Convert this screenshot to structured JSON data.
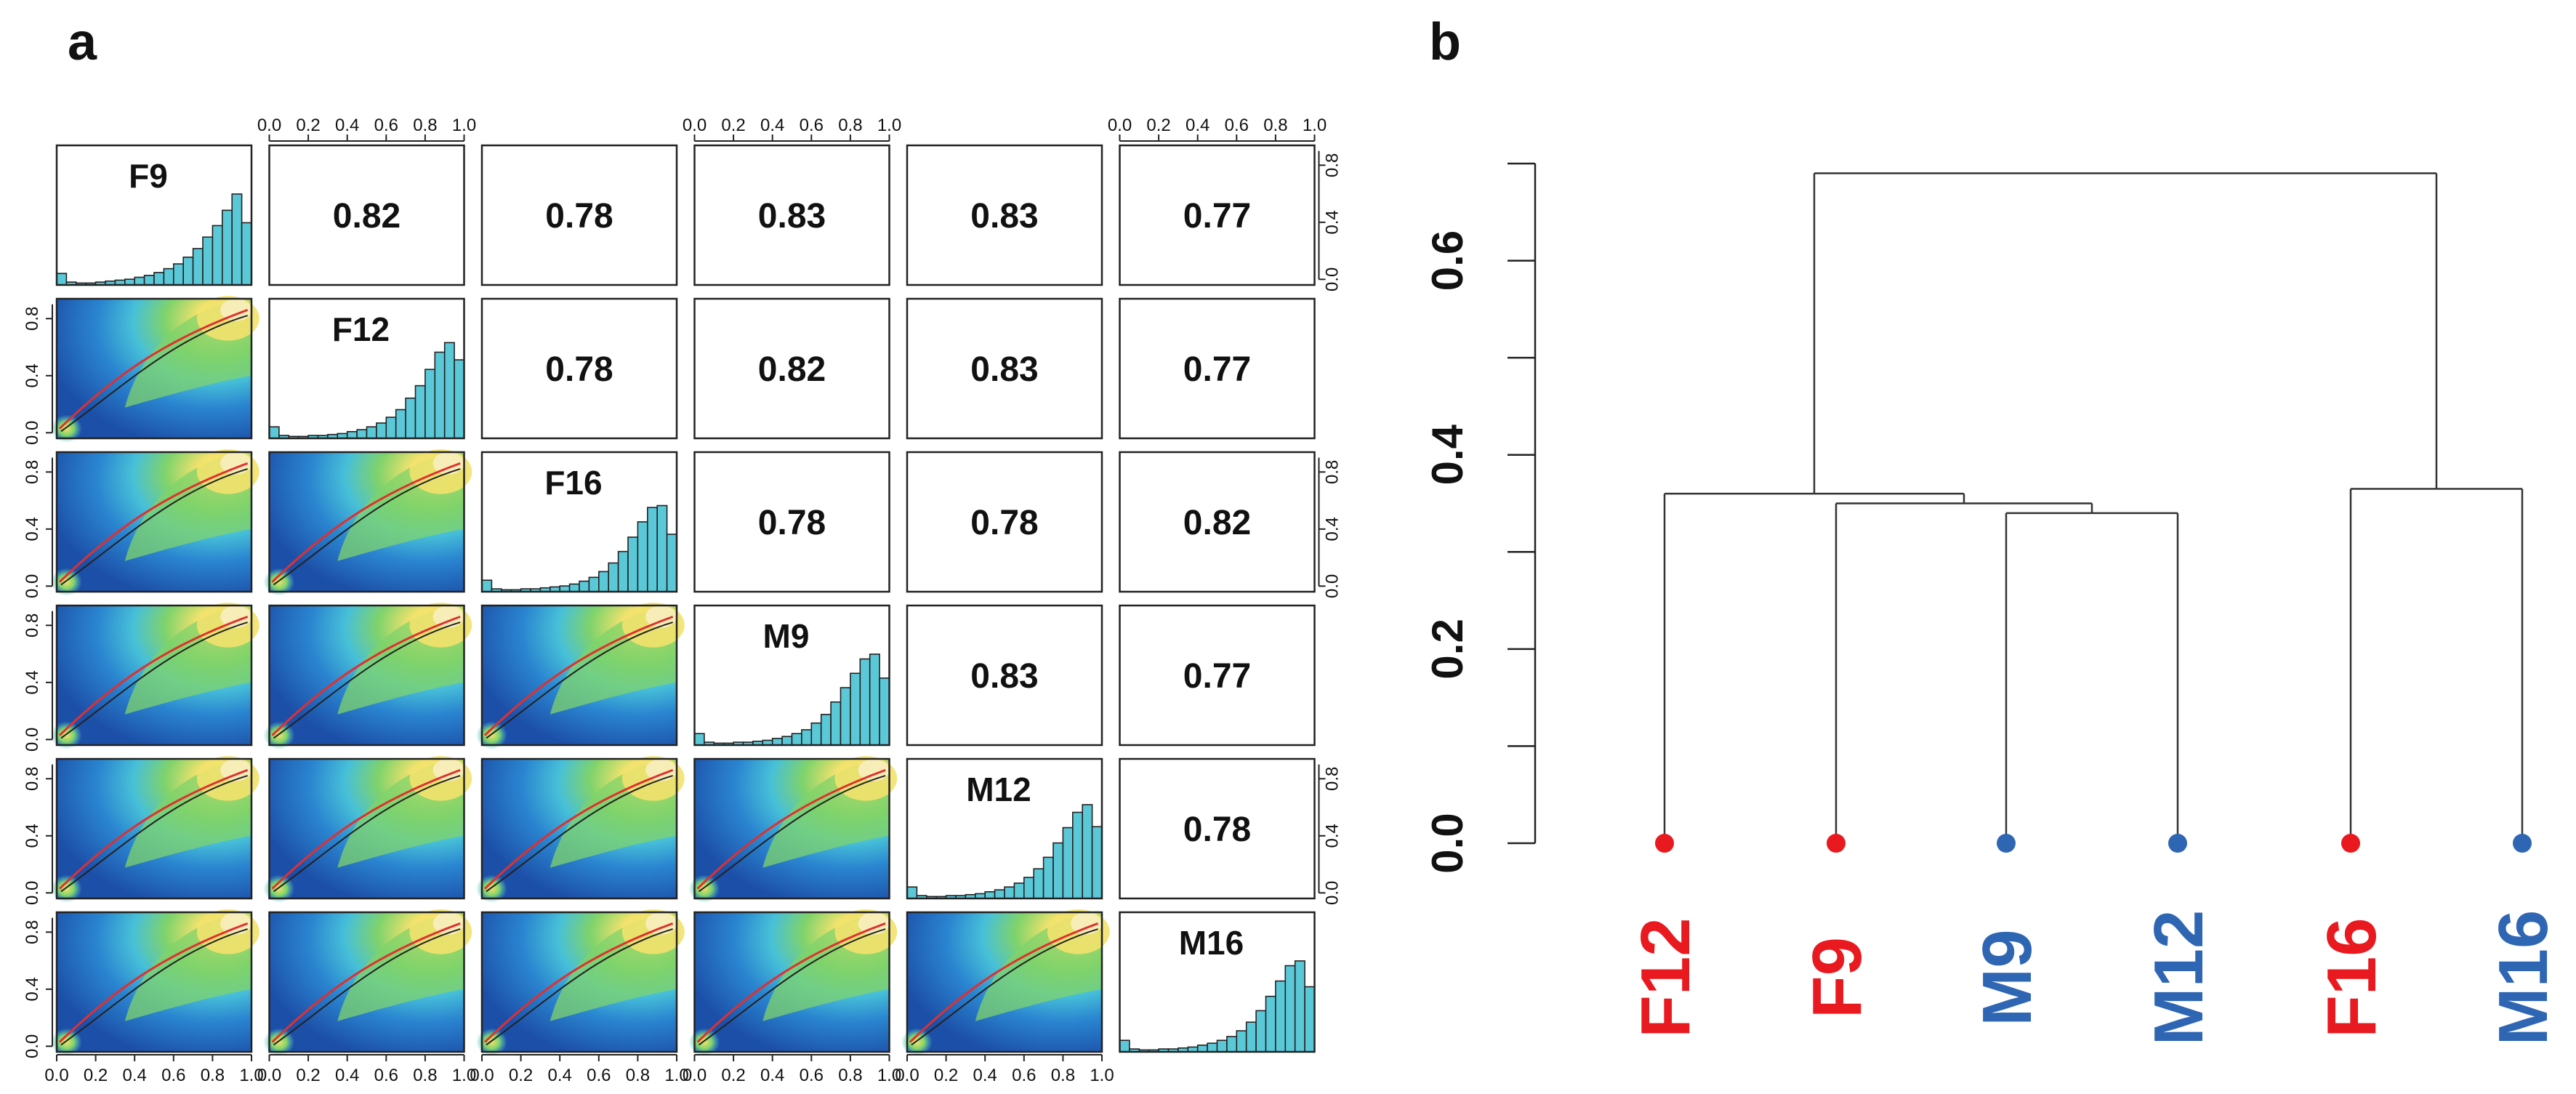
{
  "panels": {
    "a_label": "a",
    "b_label": "b"
  },
  "chart_data": [
    {
      "type": "scatter-matrix",
      "panel": "a",
      "samples": [
        "F9",
        "F12",
        "F16",
        "M9",
        "M12",
        "M16"
      ],
      "correlation_matrix": [
        [
          null,
          0.82,
          0.78,
          0.83,
          0.83,
          0.77
        ],
        [
          0.82,
          null,
          0.78,
          0.82,
          0.83,
          0.77
        ],
        [
          0.78,
          0.78,
          null,
          0.78,
          0.78,
          0.82
        ],
        [
          0.83,
          0.82,
          0.78,
          null,
          0.83,
          0.77
        ],
        [
          0.83,
          0.83,
          0.78,
          0.83,
          null,
          0.78
        ],
        [
          0.77,
          0.77,
          0.82,
          0.77,
          0.78,
          null
        ]
      ],
      "correlation_labels": [
        [
          null,
          "0.82",
          "0.78",
          "0.83",
          "0.83",
          "0.77"
        ],
        [
          null,
          null,
          "0.78",
          "0.82",
          "0.83",
          "0.77"
        ],
        [
          null,
          null,
          null,
          "0.78",
          "0.78",
          "0.82"
        ],
        [
          null,
          null,
          null,
          null,
          "0.83",
          "0.77"
        ],
        [
          null,
          null,
          null,
          null,
          null,
          "0.78"
        ],
        [
          null,
          null,
          null,
          null,
          null,
          null
        ]
      ],
      "histogram_bins": [
        0.0,
        0.05,
        0.1,
        0.15,
        0.2,
        0.25,
        0.3,
        0.35,
        0.4,
        0.45,
        0.5,
        0.55,
        0.6,
        0.65,
        0.7,
        0.75,
        0.8,
        0.85,
        0.9,
        0.95
      ],
      "histograms": {
        "F9": [
          0.12,
          0.03,
          0.02,
          0.02,
          0.03,
          0.04,
          0.05,
          0.06,
          0.08,
          0.1,
          0.13,
          0.17,
          0.22,
          0.29,
          0.38,
          0.5,
          0.62,
          0.78,
          0.95,
          0.65
        ],
        "F12": [
          0.12,
          0.03,
          0.02,
          0.02,
          0.03,
          0.03,
          0.04,
          0.05,
          0.07,
          0.09,
          0.12,
          0.16,
          0.22,
          0.3,
          0.42,
          0.55,
          0.72,
          0.9,
          1.0,
          0.82
        ],
        "F16": [
          0.12,
          0.03,
          0.02,
          0.02,
          0.03,
          0.03,
          0.04,
          0.05,
          0.06,
          0.08,
          0.11,
          0.15,
          0.21,
          0.3,
          0.42,
          0.57,
          0.73,
          0.88,
          0.9,
          0.6
        ],
        "M9": [
          0.12,
          0.03,
          0.02,
          0.02,
          0.03,
          0.03,
          0.04,
          0.05,
          0.07,
          0.09,
          0.12,
          0.16,
          0.23,
          0.32,
          0.45,
          0.6,
          0.75,
          0.9,
          0.95,
          0.7
        ],
        "M12": [
          0.12,
          0.03,
          0.02,
          0.02,
          0.03,
          0.03,
          0.04,
          0.05,
          0.07,
          0.09,
          0.12,
          0.16,
          0.22,
          0.31,
          0.43,
          0.58,
          0.74,
          0.9,
          0.98,
          0.75
        ],
        "M16": [
          0.12,
          0.03,
          0.02,
          0.02,
          0.03,
          0.03,
          0.04,
          0.05,
          0.07,
          0.09,
          0.12,
          0.16,
          0.22,
          0.31,
          0.43,
          0.58,
          0.74,
          0.9,
          0.95,
          0.68
        ]
      },
      "axis_range": [
        0.0,
        1.0
      ],
      "axis_ticks": [
        "0.0",
        "0.2",
        "0.4",
        "0.6",
        "0.8",
        "1.0"
      ],
      "y_ticks": [
        "0.0",
        "0.4",
        "0.8"
      ],
      "y_tick_values": [
        0.0,
        0.4,
        0.8
      ],
      "lower_panel_style": "smoothScatter density with loess fit (red) and identity trend (black)",
      "colors": {
        "histogram_fill": "#5bc8d8",
        "density_low": "#1c4fa8",
        "density_mid1": "#2a85d0",
        "density_mid2": "#47c0d8",
        "density_mid3": "#7fd36b",
        "density_high": "#f2e26d",
        "density_peak": "#f7eec0",
        "fit_red": "#e03030",
        "fit_black": "#222222"
      }
    },
    {
      "type": "dendrogram",
      "panel": "b",
      "leaves": [
        {
          "label": "F12",
          "group": "F",
          "color": "#e8191f"
        },
        {
          "label": "F9",
          "group": "F",
          "color": "#e8191f"
        },
        {
          "label": "M9",
          "group": "M",
          "color": "#2f66b3"
        },
        {
          "label": "M12",
          "group": "M",
          "color": "#2f66b3"
        },
        {
          "label": "F16",
          "group": "F",
          "color": "#e8191f"
        },
        {
          "label": "M16",
          "group": "M",
          "color": "#2f66b3"
        }
      ],
      "merges": [
        {
          "a": "M9",
          "b": "M12",
          "height": 0.34
        },
        {
          "a": "F9",
          "b": "M9+M12",
          "height": 0.35
        },
        {
          "a": "F12",
          "b": "F9+M9+M12",
          "height": 0.36
        },
        {
          "a": "F16",
          "b": "M16",
          "height": 0.365
        },
        {
          "a": "F12+F9+M9+M12",
          "b": "F16+M16",
          "height": 0.69
        }
      ],
      "ylim": [
        0.0,
        0.7
      ],
      "y_ticks": [
        "0.0",
        "0.2",
        "0.4",
        "0.6"
      ],
      "y_tick_values": [
        0.0,
        0.2,
        0.4,
        0.6
      ]
    }
  ]
}
